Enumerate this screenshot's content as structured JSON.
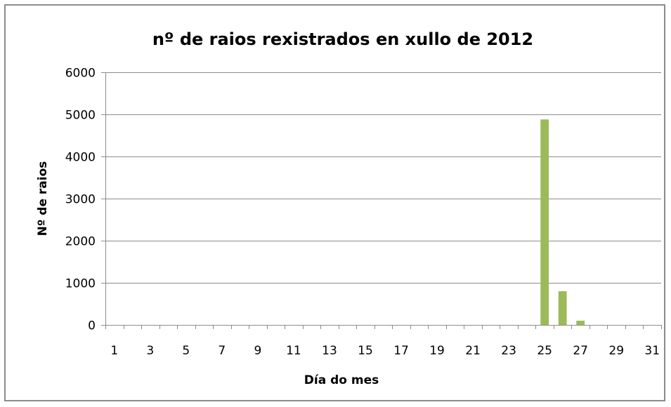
{
  "chart_data": {
    "type": "bar",
    "title": "nº de raios rexistrados en xullo de 2012",
    "xlabel": "Día do mes",
    "ylabel": "Nº de raios",
    "ylim": [
      0,
      6000
    ],
    "yticks": [
      0,
      1000,
      2000,
      3000,
      4000,
      5000,
      6000
    ],
    "categories": [
      "1",
      "2",
      "3",
      "4",
      "5",
      "6",
      "7",
      "8",
      "9",
      "10",
      "11",
      "12",
      "13",
      "14",
      "15",
      "16",
      "17",
      "18",
      "19",
      "20",
      "21",
      "22",
      "23",
      "24",
      "25",
      "26",
      "27",
      "28",
      "29",
      "30",
      "31"
    ],
    "visible_xtick_labels": [
      "1",
      "3",
      "5",
      "7",
      "9",
      "11",
      "13",
      "15",
      "17",
      "19",
      "21",
      "23",
      "25",
      "27",
      "29",
      "31"
    ],
    "values": [
      0,
      0,
      0,
      0,
      0,
      0,
      0,
      0,
      0,
      0,
      0,
      0,
      0,
      0,
      0,
      0,
      0,
      0,
      0,
      0,
      0,
      0,
      0,
      0,
      4880,
      800,
      100,
      0,
      0,
      0,
      0
    ],
    "bar_color": "#9bbb59",
    "grid": true,
    "legend": "none"
  }
}
